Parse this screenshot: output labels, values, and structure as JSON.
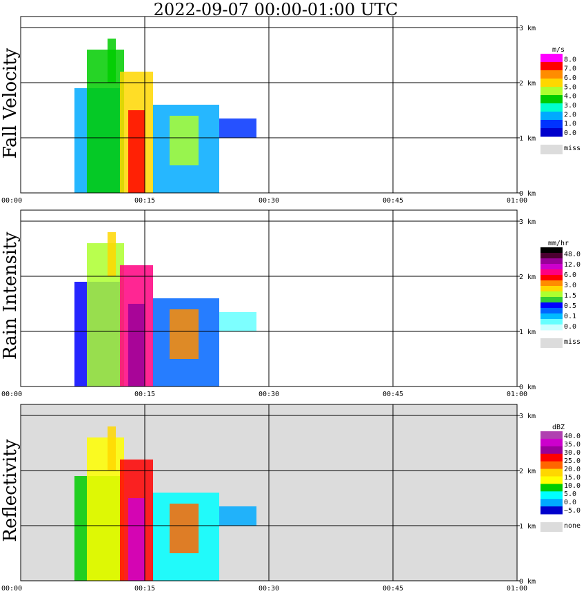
{
  "title": "2022-09-07   00:00-01:00 UTC",
  "colors": {
    "miss": "#dcdcdc",
    "grid": "#000000"
  },
  "chart_data": [
    {
      "type": "heatmap",
      "ylabel": "Fall Velocity",
      "x_ticks": [
        "00:00",
        "00:15",
        "00:30",
        "00:45",
        "01:00"
      ],
      "y_ticks": [
        "0 km",
        "1 km",
        "2 km",
        "3 km"
      ],
      "xlim_minutes": [
        0,
        60
      ],
      "ylim_km": [
        0,
        3.2
      ],
      "background": "none",
      "colorbar": {
        "unit": "m/s",
        "labels": [
          "8.0",
          "7.0",
          "6.0",
          "5.0",
          "4.0",
          "3.0",
          "2.0",
          "1.0",
          "0.0"
        ],
        "colors": [
          "#ff00ff",
          "#ff0000",
          "#ff8c00",
          "#ffd700",
          "#adff2f",
          "#00cc00",
          "#00ffcc",
          "#00aaff",
          "#0033ff",
          "#0000cc"
        ],
        "miss_label": "miss"
      }
    },
    {
      "type": "heatmap",
      "ylabel": "Rain Intensity",
      "x_ticks": [
        "00:00",
        "00:15",
        "00:30",
        "00:45",
        "01:00"
      ],
      "y_ticks": [
        "0 km",
        "1 km",
        "2 km",
        "3 km"
      ],
      "xlim_minutes": [
        0,
        60
      ],
      "ylim_km": [
        0,
        3.2
      ],
      "background": "none",
      "colorbar": {
        "unit": "mm/hr",
        "labels": [
          "48.0",
          "12.0",
          "6.0",
          "3.0",
          "1.5",
          "0.5",
          "0.1",
          "0.0"
        ],
        "colors": [
          "#000000",
          "#4b0030",
          "#990099",
          "#cc00cc",
          "#ff0080",
          "#ff0000",
          "#ff8c00",
          "#ffd700",
          "#adff2f",
          "#33cc33",
          "#0000ff",
          "#0066ff",
          "#00bbff",
          "#66ffff",
          "#ccffff"
        ],
        "miss_label": "miss"
      }
    },
    {
      "type": "heatmap",
      "ylabel": "Reflectivity",
      "x_ticks": [
        "00:00",
        "00:15",
        "00:30",
        "00:45",
        "01:00"
      ],
      "y_ticks": [
        "0 km",
        "1 km",
        "2 km",
        "3 km"
      ],
      "xlim_minutes": [
        0,
        60
      ],
      "ylim_km": [
        0,
        3.2
      ],
      "background": "none",
      "colorbar": {
        "unit": "dBZ",
        "labels": [
          "40.0",
          "35.0",
          "30.0",
          "25.0",
          "20.0",
          "15.0",
          "10.0",
          "5.0",
          "0.0",
          "−5.0"
        ],
        "colors": [
          "#b040b0",
          "#cc00cc",
          "#990099",
          "#ff0000",
          "#ff6600",
          "#ffd700",
          "#ffff00",
          "#00cc00",
          "#00ffff",
          "#00aaff",
          "#0000cc"
        ],
        "miss_label": "none"
      }
    }
  ]
}
